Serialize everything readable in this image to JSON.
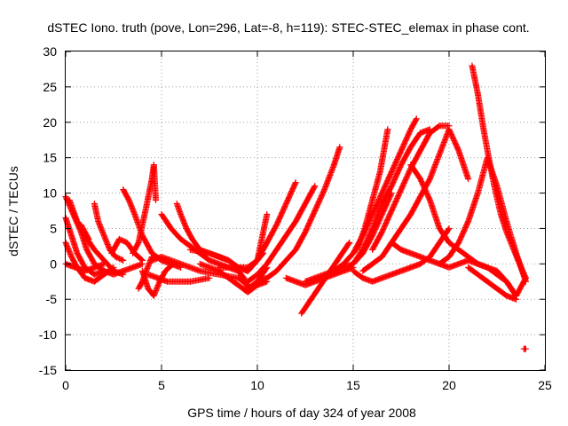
{
  "chart_data": {
    "type": "scatter",
    "title": "dSTEC Iono. truth (pove, Lon=296, Lat=-8, h=119): STEC-STEC_elemax in phase cont.",
    "xlabel": "GPS time / hours of day 324 of year 2008",
    "ylabel": "dSTEC  / TECUs",
    "xlim": [
      0,
      25
    ],
    "ylim": [
      -15,
      30
    ],
    "xticks": [
      "0",
      "5",
      "10",
      "15",
      "20",
      "25"
    ],
    "yticks": [
      "-15",
      "-10",
      "-5",
      "0",
      "5",
      "10",
      "15",
      "20",
      "25",
      "30"
    ],
    "grid": true,
    "marker": "+",
    "color": "#ff0000",
    "series": [
      {
        "x": [
          0,
          0.4,
          0.8,
          1.1,
          1.5,
          2.0,
          2.5,
          3.0,
          3.5,
          4.0
        ],
        "values": [
          9.5,
          7.0,
          4.5,
          2.0,
          0.0,
          -1.0,
          -1.5,
          -1.0,
          -0.5,
          0.0
        ]
      },
      {
        "x": [
          0,
          0.3,
          0.6,
          1.0,
          1.5,
          2.0
        ],
        "values": [
          6.5,
          4.0,
          1.5,
          -0.5,
          -1.5,
          -1.0
        ]
      },
      {
        "x": [
          0,
          0.3,
          0.6,
          1.0,
          1.5,
          2.0,
          2.5
        ],
        "values": [
          3.0,
          1.0,
          -0.5,
          -2.0,
          -2.5,
          -1.5,
          -0.5
        ]
      },
      {
        "x": [
          0,
          0.5,
          1.0,
          1.5,
          2.0
        ],
        "values": [
          0.0,
          -0.5,
          -1.0,
          -0.5,
          0.0
        ]
      },
      {
        "x": [
          0.2,
          0.6,
          1.0,
          1.5,
          2.0,
          2.5,
          3.0
        ],
        "values": [
          9.0,
          6.0,
          4.0,
          2.0,
          0.5,
          -1.0,
          -1.5
        ]
      },
      {
        "x": [
          0.8,
          1.2
        ],
        "values": [
          5.5,
          3.5
        ]
      },
      {
        "x": [
          1.5,
          1.7,
          2.0,
          2.3,
          2.6,
          3.0
        ],
        "values": [
          8.5,
          6.0,
          4.0,
          2.0,
          1.0,
          0.5
        ]
      },
      {
        "x": [
          2.4,
          2.8,
          3.2,
          3.6,
          4.0
        ],
        "values": [
          1.5,
          3.5,
          3.0,
          1.5,
          0.5
        ]
      },
      {
        "x": [
          3.0,
          3.3,
          3.6,
          4.0,
          4.5,
          5.0,
          5.5,
          6.0
        ],
        "values": [
          10.5,
          9.0,
          7.0,
          4.0,
          1.5,
          0.5,
          0.0,
          -0.5
        ]
      },
      {
        "x": [
          3.5,
          3.8,
          4.0,
          4.2,
          4.5,
          4.6,
          4.7
        ],
        "values": [
          1.5,
          3.0,
          5.5,
          8.0,
          12.0,
          14.0,
          9.0
        ]
      },
      {
        "x": [
          3.8,
          4.0,
          4.2,
          4.5
        ],
        "values": [
          -3.5,
          -2.5,
          -1.0,
          1.0
        ]
      },
      {
        "x": [
          4.0,
          4.3,
          4.6,
          4.9,
          5.2,
          5.6
        ],
        "values": [
          -1.0,
          -3.5,
          -4.5,
          -2.5,
          -1.0,
          0.0
        ]
      },
      {
        "x": [
          4.3,
          4.8,
          5.3,
          5.8,
          6.5,
          7.5
        ],
        "values": [
          -1.5,
          -2.0,
          -2.5,
          -2.5,
          -2.5,
          -2.0
        ]
      },
      {
        "x": [
          4.5,
          5.0,
          6.0,
          7.0,
          8.0,
          9.0,
          9.5
        ],
        "values": [
          0.5,
          1.0,
          0.0,
          -1.0,
          -1.5,
          -2.0,
          -3.0
        ]
      },
      {
        "x": [
          5.8,
          6.0,
          6.3,
          6.6,
          7.0,
          7.5,
          8.0,
          8.5
        ],
        "values": [
          8.5,
          7.0,
          5.0,
          3.5,
          2.0,
          1.5,
          1.0,
          0.5
        ]
      },
      {
        "x": [
          5.0,
          5.5,
          6.0,
          6.5,
          7.0,
          7.5,
          8.0,
          8.5,
          9.0,
          9.3,
          9.5,
          10.0,
          10.5
        ],
        "values": [
          7.0,
          5.0,
          3.5,
          2.5,
          1.5,
          0.5,
          0.0,
          -0.5,
          -1.0,
          -2.0,
          -3.5,
          -2.5,
          -0.5
        ]
      },
      {
        "x": [
          6.5,
          7.5,
          8.5,
          9.0,
          9.5,
          10.0,
          10.3
        ],
        "values": [
          2.0,
          1.5,
          0.5,
          -0.5,
          -1.0,
          0.5,
          1.5
        ]
      },
      {
        "x": [
          7.0,
          8.0,
          8.5,
          9.0,
          9.5,
          10.0,
          10.5
        ],
        "values": [
          0.0,
          -1.0,
          -2.0,
          -3.0,
          -4.0,
          -3.0,
          -2.5
        ]
      },
      {
        "x": [
          8.0,
          8.5,
          9.0,
          9.5,
          10.0,
          10.5
        ],
        "values": [
          -0.5,
          -0.5,
          -0.5,
          -1.0,
          0.5,
          7.0
        ]
      },
      {
        "x": [
          9.0,
          9.5,
          10.0,
          10.5,
          11.0,
          11.5,
          12.0
        ],
        "values": [
          -0.5,
          -0.5,
          0.5,
          3.0,
          5.5,
          8.5,
          11.5
        ]
      },
      {
        "x": [
          9.5,
          10.0,
          10.5,
          11.0,
          11.5,
          12.0,
          12.5,
          13.0
        ],
        "values": [
          -2.5,
          -1.5,
          0.0,
          2.0,
          4.0,
          6.0,
          8.5,
          11.0
        ]
      },
      {
        "x": [
          10.0,
          10.5,
          11.0,
          11.5,
          12.0,
          12.5,
          13.0,
          13.5,
          14.0,
          14.3
        ],
        "values": [
          -2.5,
          -2.0,
          -1.0,
          0.5,
          2.0,
          4.5,
          7.5,
          10.5,
          14.0,
          16.5
        ]
      },
      {
        "x": [
          11.5,
          12.0,
          12.5,
          13.0,
          13.5,
          14.0,
          14.5,
          15.0
        ],
        "values": [
          -2.0,
          -2.5,
          -3.0,
          -2.5,
          -2.0,
          -1.5,
          -1.0,
          -0.5
        ]
      },
      {
        "x": [
          12.5,
          13.0,
          13.5,
          14.0,
          14.5,
          15.0,
          15.5,
          16.0,
          16.5,
          17.0
        ],
        "values": [
          -2.5,
          -2.0,
          -1.5,
          -1.0,
          -0.5,
          0.0,
          1.5,
          4.0,
          7.0,
          10.0
        ]
      },
      {
        "x": [
          12.3,
          12.8,
          13.3,
          13.8,
          14.3,
          14.8
        ],
        "values": [
          -7.0,
          -5.0,
          -3.0,
          -1.0,
          1.0,
          3.0
        ]
      },
      {
        "x": [
          14.0,
          14.5,
          15.0,
          15.5,
          16.0,
          16.5,
          17.0,
          17.5,
          18.0,
          18.3
        ],
        "values": [
          -1.0,
          0.0,
          1.5,
          4.0,
          7.0,
          10.0,
          13.0,
          16.0,
          19.0,
          20.5
        ]
      },
      {
        "x": [
          15.0,
          15.5,
          16.0,
          16.5,
          17.0,
          17.5,
          18.0,
          18.5,
          19.0
        ],
        "values": [
          0.0,
          2.0,
          5.0,
          8.5,
          11.0,
          14.0,
          16.5,
          18.5,
          19.0
        ]
      },
      {
        "x": [
          15.2,
          15.6,
          16.0,
          16.4,
          16.8
        ],
        "values": [
          2.0,
          5.0,
          9.0,
          13.0,
          19.0
        ]
      },
      {
        "x": [
          15.0,
          15.5,
          16.0,
          16.5,
          17.0,
          17.5,
          18.0,
          18.5,
          19.0,
          19.5,
          20.0
        ],
        "values": [
          -1.0,
          -2.0,
          -2.5,
          -2.0,
          -1.5,
          -1.0,
          -0.5,
          0.0,
          1.0,
          3.0,
          5.0
        ]
      },
      {
        "x": [
          15.5,
          16.0,
          16.5,
          17.0,
          17.5,
          18.0,
          18.5,
          19.0,
          19.5,
          20.0,
          20.5,
          21.0
        ],
        "values": [
          -1.0,
          0.0,
          1.0,
          3.0,
          5.0,
          7.0,
          9.5,
          12.0,
          15.5,
          19.0,
          16.0,
          12.0
        ]
      },
      {
        "x": [
          16.0,
          16.5,
          17.0,
          17.5,
          18.0,
          18.5,
          19.0,
          19.5,
          20.0
        ],
        "values": [
          2.0,
          4.5,
          7.5,
          10.5,
          13.5,
          16.0,
          18.5,
          19.5,
          19.5
        ]
      },
      {
        "x": [
          17.0,
          17.5,
          18.0,
          18.5,
          19.0,
          19.5,
          20.0,
          20.5,
          21.0,
          21.5,
          22.0,
          22.5,
          23.0,
          23.5
        ],
        "values": [
          3.0,
          2.0,
          1.5,
          1.0,
          0.5,
          0.0,
          -0.5,
          0.0,
          0.5,
          0.0,
          -0.5,
          -1.5,
          -2.5,
          -4.5
        ]
      },
      {
        "x": [
          18.0,
          18.5,
          19.0,
          19.5,
          20.0,
          20.5,
          21.0,
          21.5,
          22.0,
          22.5,
          23.0,
          23.5,
          24.0
        ],
        "values": [
          14.0,
          12.0,
          9.0,
          5.0,
          3.0,
          2.0,
          1.0,
          0.0,
          -0.5,
          -1.0,
          -2.5,
          -4.5,
          -2.0
        ]
      },
      {
        "x": [
          19.5,
          20.0,
          20.5,
          21.0,
          21.5,
          22.0,
          22.5,
          23.0,
          23.5,
          24.0
        ],
        "values": [
          0.0,
          1.0,
          3.0,
          6.0,
          10.0,
          15.0,
          11.0,
          6.0,
          1.5,
          -2.5
        ]
      },
      {
        "x": [
          21.2,
          21.5,
          21.8,
          22.1,
          22.4,
          22.7,
          23.0,
          23.3,
          23.6,
          24.0
        ],
        "values": [
          28.0,
          24.0,
          19.0,
          14.5,
          10.5,
          7.0,
          4.5,
          2.5,
          0.5,
          -2.0
        ]
      },
      {
        "x": [
          21.0,
          21.5,
          22.0,
          22.5,
          23.0,
          23.5
        ],
        "values": [
          -0.5,
          -1.5,
          -2.5,
          -3.5,
          -4.5,
          -5.0
        ]
      },
      {
        "x": [
          23.9,
          24.0
        ],
        "values": [
          -12.0,
          -12.0
        ]
      }
    ]
  }
}
